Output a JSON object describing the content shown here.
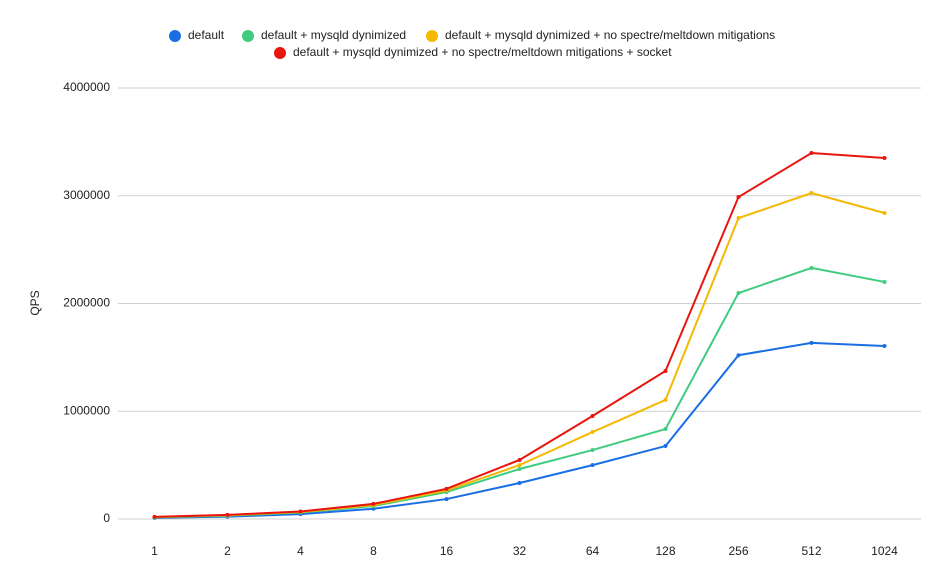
{
  "chart_data": {
    "type": "line",
    "y_label": "QPS",
    "categories": [
      "1",
      "2",
      "4",
      "8",
      "16",
      "32",
      "64",
      "128",
      "256",
      "512",
      "1024"
    ],
    "series": [
      {
        "name": "default",
        "color": "#1a6ee3",
        "values": [
          10000,
          22000,
          45000,
          95000,
          185000,
          334000,
          500000,
          677000,
          1520000,
          1635000,
          1605000
        ]
      },
      {
        "name": "default + mysqld dynimized",
        "color": "#3fcc7e",
        "values": [
          15000,
          30000,
          60000,
          120000,
          250000,
          464000,
          640000,
          835000,
          2097000,
          2330000,
          2200000
        ]
      },
      {
        "name": "default + mysqld dynimized + no spectre/meltdown mitigations",
        "color": "#f5b800",
        "values": [
          18000,
          35000,
          65000,
          130000,
          265000,
          500000,
          807000,
          1105000,
          2793000,
          3025000,
          2840000
        ]
      },
      {
        "name": "default + mysqld dynimized + no spectre/meltdown mitigations + socket",
        "color": "#e8150e",
        "values": [
          20000,
          38000,
          70000,
          140000,
          280000,
          548000,
          956000,
          1374000,
          2988000,
          3397000,
          3350000
        ]
      }
    ],
    "ylim": [
      0,
      4000000
    ],
    "yticks": [
      0,
      1000000,
      2000000,
      3000000,
      4000000
    ],
    "grid": true
  }
}
